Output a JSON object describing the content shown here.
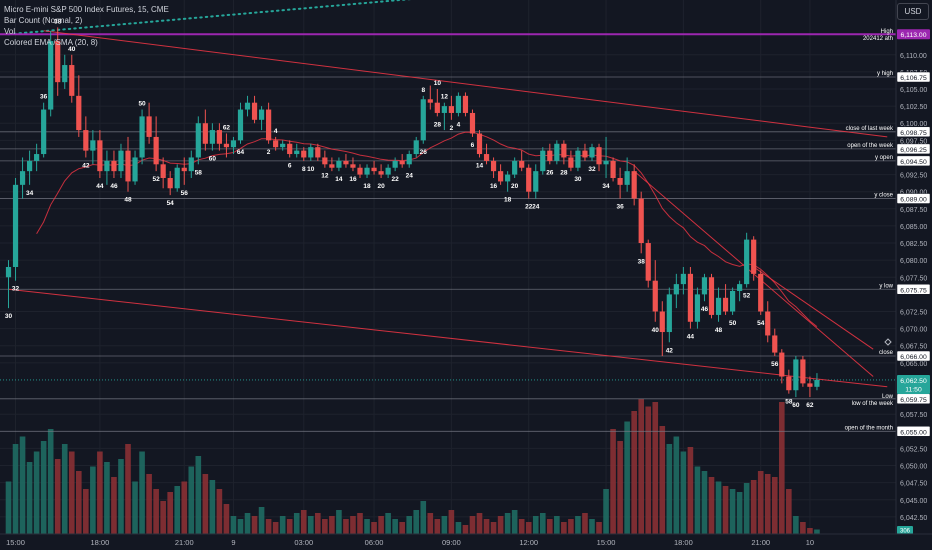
{
  "legend": {
    "symbol": "Micro E-mini S&P 500 Index Futures, 15, CME",
    "bar_count": "Bar Count (Normal, 2)",
    "vol": "Vol",
    "ema": "Colored EMA /SMA (20, 8)"
  },
  "currency_button": "USD",
  "colors": {
    "up": "#26a69a",
    "down": "#ef5350",
    "background": "#131722",
    "level_line": "#787b86",
    "high_line": "#9c27b0",
    "trend_line": "#f23645",
    "ema_line": "#f23645",
    "dotted_line": "#26a69a",
    "text": "#d1d4dc"
  },
  "chart_data": {
    "type": "candlestick",
    "timeframe": "15",
    "y_axis": {
      "ylim": [
        6040.0,
        6118.0
      ],
      "ticks": [
        "6,110.00",
        "6,107.50",
        "6,105.00",
        "6,102.50",
        "6,100.00",
        "6,097.50",
        "6,092.50",
        "6,090.00",
        "6,087.50",
        "6,085.00",
        "6,082.50",
        "6,080.00",
        "6,077.50",
        "6,072.50",
        "6,070.00",
        "6,067.50",
        "6,065.00",
        "6,057.50",
        "6,052.50",
        "6,050.00",
        "6,047.50",
        "6,045.00",
        "6,042.50"
      ]
    },
    "x_axis": {
      "ticks": [
        {
          "bar": 1,
          "label": "15:00"
        },
        {
          "bar": 13,
          "label": "18:00"
        },
        {
          "bar": 25,
          "label": "21:00"
        },
        {
          "bar": 32,
          "label": "9"
        },
        {
          "bar": 42,
          "label": "03:00"
        },
        {
          "bar": 52,
          "label": "06:00"
        },
        {
          "bar": 63,
          "label": "09:00"
        },
        {
          "bar": 74,
          "label": "12:00"
        },
        {
          "bar": 85,
          "label": "15:00"
        },
        {
          "bar": 96,
          "label": "18:00"
        },
        {
          "bar": 107,
          "label": "21:00"
        },
        {
          "bar": 114,
          "label": "10"
        }
      ]
    },
    "candles": [
      [
        6077.5,
        6080.0,
        6073.0,
        6079.0
      ],
      [
        6079.0,
        6092.0,
        6077.0,
        6091.0
      ],
      [
        6091.0,
        6095.0,
        6089.0,
        6093.0
      ],
      [
        6093.0,
        6096.0,
        6091.0,
        6094.5
      ],
      [
        6094.5,
        6097.0,
        6093.0,
        6095.5
      ],
      [
        6095.5,
        6103.0,
        6095.0,
        6102.0
      ],
      [
        6102.0,
        6113.5,
        6101.0,
        6112.0
      ],
      [
        6112.0,
        6114.0,
        6104.0,
        6106.0
      ],
      [
        6106.0,
        6110.0,
        6105.0,
        6108.5
      ],
      [
        6108.5,
        6110.0,
        6103.0,
        6104.0
      ],
      [
        6104.0,
        6107.0,
        6098.0,
        6099.0
      ],
      [
        6099.0,
        6101.0,
        6095.0,
        6096.0
      ],
      [
        6096.0,
        6099.0,
        6094.0,
        6097.5
      ],
      [
        6097.5,
        6099.0,
        6092.0,
        6093.0
      ],
      [
        6093.0,
        6096.0,
        6091.0,
        6094.5
      ],
      [
        6094.5,
        6096.0,
        6092.0,
        6093.0
      ],
      [
        6093.0,
        6097.0,
        6092.0,
        6096.0
      ],
      [
        6096.0,
        6098.0,
        6090.0,
        6091.5
      ],
      [
        6091.5,
        6096.0,
        6091.0,
        6095.0
      ],
      [
        6095.0,
        6102.0,
        6094.0,
        6101.0
      ],
      [
        6101.0,
        6103.0,
        6097.0,
        6098.0
      ],
      [
        6098.0,
        6101.0,
        6093.0,
        6094.0
      ],
      [
        6094.0,
        6095.0,
        6090.5,
        6092.0
      ],
      [
        6092.0,
        6093.0,
        6089.5,
        6090.5
      ],
      [
        6090.5,
        6094.0,
        6090.0,
        6093.5
      ],
      [
        6093.5,
        6095.0,
        6091.0,
        6093.0
      ],
      [
        6093.0,
        6096.0,
        6092.0,
        6095.0
      ],
      [
        6095.0,
        6101.0,
        6094.0,
        6100.0
      ],
      [
        6100.0,
        6102.0,
        6096.0,
        6097.0
      ],
      [
        6097.0,
        6100.0,
        6096.0,
        6099.0
      ],
      [
        6099.0,
        6100.0,
        6096.0,
        6097.0
      ],
      [
        6097.0,
        6098.5,
        6095.0,
        6096.5
      ],
      [
        6096.5,
        6098.0,
        6095.5,
        6097.5
      ],
      [
        6097.5,
        6103.0,
        6097.0,
        6102.0
      ],
      [
        6102.0,
        6104.0,
        6101.0,
        6103.0
      ],
      [
        6103.0,
        6104.0,
        6100.0,
        6100.5
      ],
      [
        6100.5,
        6102.5,
        6099.0,
        6102.0
      ],
      [
        6102.0,
        6103.0,
        6097.0,
        6097.5
      ],
      [
        6097.5,
        6098.0,
        6096.0,
        6096.5
      ],
      [
        6096.5,
        6097.5,
        6096.0,
        6097.0
      ],
      [
        6097.0,
        6097.5,
        6095.0,
        6095.5
      ],
      [
        6095.5,
        6097.0,
        6095.0,
        6096.0
      ],
      [
        6096.0,
        6096.5,
        6094.5,
        6095.0
      ],
      [
        6095.0,
        6097.0,
        6094.5,
        6096.5
      ],
      [
        6096.5,
        6097.0,
        6094.5,
        6095.0
      ],
      [
        6095.0,
        6096.0,
        6093.5,
        6094.0
      ],
      [
        6094.0,
        6095.0,
        6093.0,
        6093.5
      ],
      [
        6093.5,
        6095.0,
        6093.0,
        6094.5
      ],
      [
        6094.5,
        6095.5,
        6093.5,
        6094.0
      ],
      [
        6094.0,
        6095.0,
        6093.0,
        6093.5
      ],
      [
        6093.5,
        6094.0,
        6092.0,
        6092.5
      ],
      [
        6092.5,
        6094.0,
        6092.0,
        6093.5
      ],
      [
        6093.5,
        6094.5,
        6092.5,
        6093.0
      ],
      [
        6093.0,
        6094.0,
        6092.0,
        6092.5
      ],
      [
        6092.5,
        6094.0,
        6092.0,
        6093.5
      ],
      [
        6093.5,
        6095.0,
        6093.0,
        6094.5
      ],
      [
        6094.5,
        6095.5,
        6093.5,
        6094.0
      ],
      [
        6094.0,
        6096.0,
        6093.5,
        6095.5
      ],
      [
        6095.5,
        6098.0,
        6095.0,
        6097.5
      ],
      [
        6097.5,
        6104.0,
        6097.0,
        6103.5
      ],
      [
        6103.5,
        6105.5,
        6102.0,
        6103.0
      ],
      [
        6103.0,
        6105.0,
        6101.0,
        6101.5
      ],
      [
        6101.5,
        6103.0,
        6099.0,
        6102.5
      ],
      [
        6102.5,
        6104.0,
        6100.5,
        6101.5
      ],
      [
        6101.5,
        6104.5,
        6101.0,
        6104.0
      ],
      [
        6104.0,
        6104.5,
        6101.0,
        6101.5
      ],
      [
        6101.5,
        6102.0,
        6098.0,
        6098.5
      ],
      [
        6098.5,
        6099.0,
        6095.0,
        6095.5
      ],
      [
        6095.5,
        6097.0,
        6094.0,
        6094.5
      ],
      [
        6094.5,
        6095.0,
        6092.0,
        6093.0
      ],
      [
        6093.0,
        6094.0,
        6091.0,
        6091.5
      ],
      [
        6091.5,
        6093.0,
        6090.0,
        6092.5
      ],
      [
        6092.5,
        6095.0,
        6092.0,
        6094.5
      ],
      [
        6094.5,
        6096.0,
        6093.0,
        6093.5
      ],
      [
        6093.5,
        6094.0,
        6089.0,
        6090.0
      ],
      [
        6090.0,
        6094.0,
        6089.0,
        6093.0
      ],
      [
        6093.0,
        6096.5,
        6092.5,
        6096.0
      ],
      [
        6096.0,
        6097.0,
        6094.0,
        6094.5
      ],
      [
        6094.5,
        6097.5,
        6094.0,
        6097.0
      ],
      [
        6097.0,
        6097.5,
        6094.0,
        6095.0
      ],
      [
        6095.0,
        6096.0,
        6093.0,
        6093.5
      ],
      [
        6093.5,
        6096.5,
        6093.0,
        6096.0
      ],
      [
        6096.0,
        6097.0,
        6094.5,
        6095.0
      ],
      [
        6095.0,
        6097.0,
        6094.5,
        6096.5
      ],
      [
        6096.5,
        6097.0,
        6093.0,
        6094.0
      ],
      [
        6094.0,
        6098.0,
        6092.0,
        6094.5
      ],
      [
        6094.5,
        6095.0,
        6091.5,
        6092.0
      ],
      [
        6092.0,
        6093.5,
        6089.0,
        6091.0
      ],
      [
        6091.0,
        6095.0,
        6090.0,
        6093.0
      ],
      [
        6093.0,
        6094.0,
        6088.0,
        6089.0
      ],
      [
        6089.0,
        6090.0,
        6081.0,
        6082.5
      ],
      [
        6082.5,
        6083.0,
        6076.0,
        6077.0
      ],
      [
        6077.0,
        6080.0,
        6071.0,
        6072.5
      ],
      [
        6072.5,
        6074.0,
        6066.0,
        6069.5
      ],
      [
        6069.5,
        6076.0,
        6068.0,
        6075.0
      ],
      [
        6075.0,
        6078.0,
        6073.0,
        6076.5
      ],
      [
        6076.5,
        6079.0,
        6075.0,
        6078.0
      ],
      [
        6078.0,
        6079.0,
        6070.0,
        6071.0
      ],
      [
        6071.0,
        6076.0,
        6070.0,
        6075.0
      ],
      [
        6075.0,
        6078.0,
        6074.0,
        6077.5
      ],
      [
        6077.5,
        6078.0,
        6071.5,
        6072.0
      ],
      [
        6072.0,
        6076.0,
        6071.0,
        6074.5
      ],
      [
        6074.5,
        6076.5,
        6072.0,
        6072.5
      ],
      [
        6072.5,
        6076.0,
        6072.0,
        6075.5
      ],
      [
        6075.5,
        6077.0,
        6074.0,
        6076.5
      ],
      [
        6076.5,
        6084.0,
        6076.0,
        6083.0
      ],
      [
        6083.0,
        6083.5,
        6077.0,
        6078.0
      ],
      [
        6078.0,
        6078.5,
        6072.0,
        6072.5
      ],
      [
        6072.5,
        6074.0,
        6068.0,
        6069.0
      ],
      [
        6069.0,
        6070.0,
        6066.0,
        6066.5
      ],
      [
        6066.5,
        6067.0,
        6062.0,
        6063.0
      ],
      [
        6063.0,
        6064.0,
        6060.5,
        6061.0
      ],
      [
        6061.0,
        6066.0,
        6060.0,
        6065.5
      ],
      [
        6065.5,
        6066.0,
        6061.5,
        6062.0
      ],
      [
        6062.0,
        6063.0,
        6060.0,
        6061.5
      ],
      [
        6061.5,
        6063.5,
        6061.0,
        6062.5
      ]
    ],
    "volume": [
      35,
      60,
      65,
      48,
      55,
      62,
      70,
      50,
      60,
      55,
      42,
      30,
      45,
      55,
      48,
      38,
      50,
      60,
      35,
      55,
      40,
      30,
      22,
      28,
      32,
      35,
      45,
      52,
      40,
      36,
      30,
      20,
      12,
      10,
      14,
      12,
      18,
      10,
      8,
      12,
      10,
      14,
      16,
      12,
      14,
      10,
      12,
      16,
      10,
      12,
      14,
      10,
      8,
      12,
      14,
      10,
      8,
      12,
      16,
      22,
      14,
      10,
      12,
      16,
      8,
      6,
      12,
      14,
      10,
      8,
      12,
      14,
      16,
      10,
      8,
      12,
      14,
      10,
      12,
      8,
      10,
      12,
      14,
      10,
      8,
      30,
      70,
      62,
      75,
      82,
      90,
      85,
      88,
      72,
      60,
      65,
      55,
      58,
      45,
      42,
      38,
      35,
      32,
      30,
      28,
      34,
      36,
      42,
      40,
      38,
      88,
      30,
      12,
      8,
      4,
      3
    ],
    "bar_count_labels": [
      {
        "bar": 0,
        "text": "30",
        "pos": "below"
      },
      {
        "bar": 1,
        "text": "32",
        "pos": "below"
      },
      {
        "bar": 3,
        "text": "34",
        "pos": "below"
      },
      {
        "bar": 5,
        "text": "36",
        "pos": "above"
      },
      {
        "bar": 7,
        "text": "38",
        "pos": "above"
      },
      {
        "bar": 9,
        "text": "40",
        "pos": "above"
      },
      {
        "bar": 11,
        "text": "42",
        "pos": "below"
      },
      {
        "bar": 13,
        "text": "44",
        "pos": "below"
      },
      {
        "bar": 15,
        "text": "46",
        "pos": "below"
      },
      {
        "bar": 17,
        "text": "48",
        "pos": "below"
      },
      {
        "bar": 19,
        "text": "50",
        "pos": "above"
      },
      {
        "bar": 21,
        "text": "52",
        "pos": "below"
      },
      {
        "bar": 23,
        "text": "54",
        "pos": "below"
      },
      {
        "bar": 25,
        "text": "56",
        "pos": "below"
      },
      {
        "bar": 27,
        "text": "58",
        "pos": "below"
      },
      {
        "bar": 29,
        "text": "60",
        "pos": "below"
      },
      {
        "bar": 31,
        "text": "62",
        "pos": "above"
      },
      {
        "bar": 33,
        "text": "64",
        "pos": "below"
      },
      {
        "bar": 37,
        "text": "2",
        "pos": "below"
      },
      {
        "bar": 38,
        "text": "4",
        "pos": "above"
      },
      {
        "bar": 40,
        "text": "6",
        "pos": "below"
      },
      {
        "bar": 42,
        "text": "8",
        "pos": "below"
      },
      {
        "bar": 43,
        "text": "10",
        "pos": "below"
      },
      {
        "bar": 45,
        "text": "12",
        "pos": "below"
      },
      {
        "bar": 47,
        "text": "14",
        "pos": "below"
      },
      {
        "bar": 49,
        "text": "16",
        "pos": "below"
      },
      {
        "bar": 51,
        "text": "18",
        "pos": "below"
      },
      {
        "bar": 53,
        "text": "20",
        "pos": "below"
      },
      {
        "bar": 55,
        "text": "22",
        "pos": "below"
      },
      {
        "bar": 57,
        "text": "24",
        "pos": "below"
      },
      {
        "bar": 59,
        "text": "26",
        "pos": "below"
      },
      {
        "bar": 61,
        "text": "28",
        "pos": "below"
      },
      {
        "bar": 63,
        "text": "2",
        "pos": "below"
      },
      {
        "bar": 64,
        "text": "4",
        "pos": "below"
      },
      {
        "bar": 66,
        "text": "6",
        "pos": "below"
      },
      {
        "bar": 59,
        "text": "8",
        "pos": "above"
      },
      {
        "bar": 61,
        "text": "10",
        "pos": "above"
      },
      {
        "bar": 62,
        "text": "12",
        "pos": "above"
      },
      {
        "bar": 67,
        "text": "14",
        "pos": "below"
      },
      {
        "bar": 69,
        "text": "16",
        "pos": "below"
      },
      {
        "bar": 71,
        "text": "18",
        "pos": "below"
      },
      {
        "bar": 72,
        "text": "20",
        "pos": "below"
      },
      {
        "bar": 74,
        "text": "22",
        "pos": "below"
      },
      {
        "bar": 75,
        "text": "24",
        "pos": "below"
      },
      {
        "bar": 77,
        "text": "26",
        "pos": "below"
      },
      {
        "bar": 79,
        "text": "28",
        "pos": "below"
      },
      {
        "bar": 81,
        "text": "30",
        "pos": "below"
      },
      {
        "bar": 83,
        "text": "32",
        "pos": "below"
      },
      {
        "bar": 85,
        "text": "34",
        "pos": "below"
      },
      {
        "bar": 87,
        "text": "36",
        "pos": "below"
      },
      {
        "bar": 90,
        "text": "38",
        "pos": "below"
      },
      {
        "bar": 92,
        "text": "40",
        "pos": "below"
      },
      {
        "bar": 94,
        "text": "42",
        "pos": "below"
      },
      {
        "bar": 97,
        "text": "44",
        "pos": "below"
      },
      {
        "bar": 99,
        "text": "46",
        "pos": "below"
      },
      {
        "bar": 101,
        "text": "48",
        "pos": "below"
      },
      {
        "bar": 103,
        "text": "50",
        "pos": "below"
      },
      {
        "bar": 105,
        "text": "52",
        "pos": "below"
      },
      {
        "bar": 107,
        "text": "54",
        "pos": "below"
      },
      {
        "bar": 109,
        "text": "56",
        "pos": "below"
      },
      {
        "bar": 111,
        "text": "58",
        "pos": "below"
      },
      {
        "bar": 112,
        "text": "60",
        "pos": "below"
      },
      {
        "bar": 114,
        "text": "62",
        "pos": "below"
      }
    ],
    "levels": [
      {
        "price": 6113.0,
        "label": "High",
        "sublabel": "202412 ath",
        "badge": "6,113.00",
        "kind": "high"
      },
      {
        "price": 6106.75,
        "label": "y high",
        "badge": "6,106.75",
        "kind": "level"
      },
      {
        "price": 6098.75,
        "label": "close of last week",
        "badge": "6,098.75",
        "kind": "level"
      },
      {
        "price": 6096.25,
        "label": "open of the week",
        "badge": "6,096.25",
        "kind": "level"
      },
      {
        "price": 6094.5,
        "label": "y open",
        "badge": "6,094.50",
        "kind": "level"
      },
      {
        "price": 6089.0,
        "label": "y close",
        "badge": "6,089.00",
        "kind": "level"
      },
      {
        "price": 6075.75,
        "label": "y low",
        "badge": "6,075.75",
        "kind": "level"
      },
      {
        "price": 6066.0,
        "label": "close",
        "badge": "6,066.00",
        "kind": "level"
      },
      {
        "price": 6059.75,
        "label": "Low",
        "sublabel": "low of the week",
        "badge": "6,059.75",
        "kind": "low"
      },
      {
        "price": 6055.0,
        "label": "open of the month",
        "badge": "6,055.00",
        "kind": "level"
      }
    ],
    "last_price": {
      "price": 6062.5,
      "badge": "6,062.50",
      "countdown": "11:50"
    },
    "volume_badge": "306",
    "trend_lines": [
      {
        "from": [
          5,
          6113.5
        ],
        "to": [
          125,
          6098.0
        ]
      },
      {
        "from": [
          0,
          6075.75
        ],
        "to": [
          125,
          6061.5
        ]
      },
      {
        "from": [
          89,
          6093.0
        ],
        "to": [
          123,
          6063.0
        ]
      },
      {
        "from": [
          106,
          6079.0
        ],
        "to": [
          123,
          6067.0
        ]
      }
    ],
    "dotted_line": {
      "from": [
        0,
        6113.0
      ],
      "to": [
        128,
        6124.5
      ]
    },
    "xlabel": "",
    "ylabel": ""
  }
}
